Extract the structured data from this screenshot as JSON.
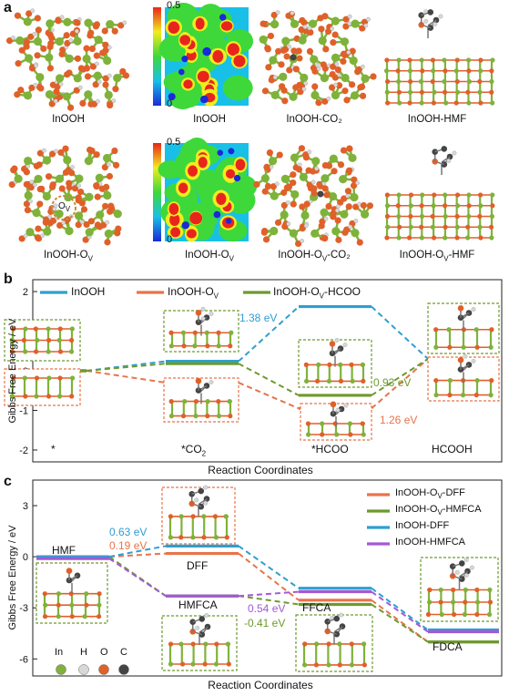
{
  "panel_a": {
    "letter": "a",
    "colorbar": {
      "max": "0.5",
      "min": "0"
    },
    "row1": [
      "InOOH",
      "InOOH",
      "InOOH-CO₂",
      "InOOH-HMF"
    ],
    "row2": [
      "InOOH-O",
      "InOOH-O",
      "InOOH-O",
      "InOOH-O"
    ],
    "row2_tail": [
      "",
      "",
      "-CO₂",
      "-HMF"
    ],
    "vacancy_sub": "V",
    "ov_label": "O",
    "ov_sub": "V"
  },
  "panel_b": {
    "letter": "b",
    "legend": [
      "InOOH",
      "InOOH-O",
      "InOOH-O"
    ],
    "legend_tail": [
      "",
      "",
      "-HCOO"
    ],
    "ylabel": "Gibbs Free Energy / eV",
    "xlabel": "Reaction Coordinates",
    "yticks": [
      "2",
      "1",
      "0",
      "-1",
      "-2"
    ],
    "states": [
      "*",
      "*CO",
      "*HCOO",
      "HCOOH"
    ],
    "annotations": [
      "1.38 eV",
      "0.93 eV",
      "1.26 eV"
    ]
  },
  "panel_c": {
    "letter": "c",
    "legend": [
      "InOOH-O",
      "InOOH-O",
      "InOOH-DFF",
      "InOOH-HMFCA"
    ],
    "legend_tail": [
      "-DFF",
      "-HMFCA",
      "",
      ""
    ],
    "ylabel": "Gibbs Free Energy / eV",
    "xlabel": "Reaction Coordinates",
    "yticks": [
      "3",
      "0",
      "-3",
      "-6"
    ],
    "states": [
      "HMF",
      "DFF",
      "HMFCA",
      "FFCA",
      "FDCA"
    ],
    "annotations": [
      "0.63 eV",
      "0.19 eV",
      "0.54 eV",
      "-0.41 eV"
    ],
    "element_legend": [
      "In",
      "H",
      "O",
      "C"
    ]
  },
  "colors": {
    "inooh": "#2e9fd0",
    "ov": "#e8744a",
    "ovhcoo": "#6e9a2e",
    "hmfca": "#a25ad4",
    "in_atom": "#7fb23a",
    "o_atom": "#e0602a",
    "h_atom": "#d8d8d8",
    "c_atom": "#444444"
  },
  "chart_data": [
    {
      "type": "line",
      "title": "",
      "xlabel": "Reaction Coordinates",
      "ylabel": "Gibbs Free Energy / eV",
      "categories": [
        "*",
        "*CO2",
        "*HCOO",
        "HCOOH"
      ],
      "ylim": [
        -2.3,
        2.3
      ],
      "series": [
        {
          "name": "InOOH",
          "values": [
            0,
            0.24,
            1.62,
            0.3
          ]
        },
        {
          "name": "InOOH-OV",
          "values": [
            0,
            -0.3,
            -0.95,
            0.3
          ]
        },
        {
          "name": "InOOH-OV-HCOO",
          "values": [
            0,
            0.18,
            -0.62,
            0.3
          ]
        }
      ]
    },
    {
      "type": "line",
      "title": "",
      "xlabel": "Reaction Coordinates",
      "ylabel": "Gibbs Free Energy / eV",
      "categories": [
        "HMF",
        "DFF/HMFCA",
        "FFCA",
        "FDCA"
      ],
      "ylim": [
        -7,
        4.5
      ],
      "series": [
        {
          "name": "InOOH-OV-DFF",
          "values": [
            0,
            0.19,
            -2.55,
            -5.0
          ]
        },
        {
          "name": "InOOH-OV-HMFCA",
          "values": [
            0,
            -2.3,
            -2.8,
            -5.0
          ]
        },
        {
          "name": "InOOH-DFF",
          "values": [
            0,
            0.63,
            -1.85,
            -4.3
          ]
        },
        {
          "name": "InOOH-HMFCA",
          "values": [
            0,
            -2.2,
            -1.95,
            -4.3
          ]
        }
      ]
    }
  ]
}
